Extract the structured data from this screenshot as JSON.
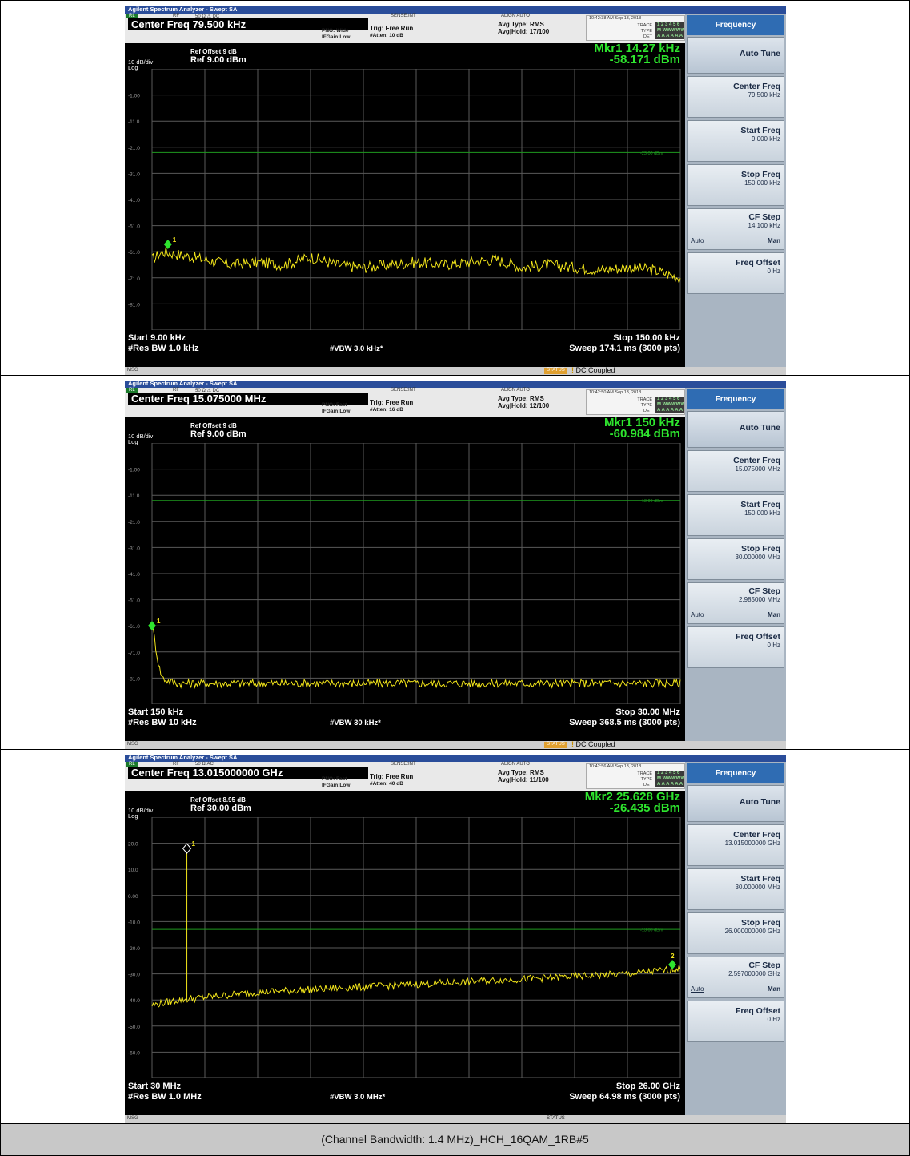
{
  "document": {
    "caption": "(Channel Bandwidth: 1.4 MHz)_HCH_16QAM_1RB#5"
  },
  "common": {
    "window_title": "Agilent Spectrum Analyzer - Swept SA",
    "rl": "RL",
    "rf": "RF",
    "sense": "SENSE:INT",
    "align": "ALIGN AUTO",
    "trig": "Trig: Free Run",
    "avg_type": "Avg Type: RMS",
    "trace_label": "TRACE",
    "type_label": "TYPE",
    "det_label": "DET",
    "trace_val": "1 2 3 4 5 6",
    "type_val": "M WWWWW",
    "det_val": "A A A A A A",
    "div_label": "10 dB/div",
    "log_label": "Log",
    "msg": "MSG",
    "status": "STATUS",
    "dc_coupled": "DC Coupled",
    "softkeys": {
      "header": "Frequency",
      "auto_tune": "Auto Tune",
      "center_freq": "Center Freq",
      "start_freq": "Start Freq",
      "stop_freq": "Stop Freq",
      "cf_step": "CF Step",
      "freq_offset": "Freq Offset",
      "auto": "Auto",
      "man": "Man",
      "offset_val": "0 Hz"
    },
    "colors": {
      "trace": "#f2e51a",
      "marker": "#2ee52e",
      "limit": "#1f9a1f",
      "grid": "#5a5a5a",
      "title_bar": "#2a4d9a",
      "softkey_head": "#2f6cb3"
    }
  },
  "screens": [
    {
      "input_impedance": "50 Ω  ⚠ DC",
      "timestamp": "10:42:38 AM Sep 13, 2018",
      "center_freq": "Center Freq 79.500 kHz",
      "pno": "PNO: Wide",
      "ifgain": "IFGain:Low",
      "atten": "#Atten: 10 dB",
      "avg_hold": "Avg|Hold: 17/100",
      "ref_offset": "Ref Offset 9 dB",
      "ref_level": "Ref 9.00 dBm",
      "marker_label": "Mkr1 14.27 kHz",
      "marker_value": "-58.171 dBm",
      "y_ticks": [
        "-1.00",
        "-11.0",
        "-21.0",
        "-31.0",
        "-41.0",
        "-51.0",
        "-61.0",
        "-71.0",
        "-81.0"
      ],
      "limit_label": "-23.00 dBm",
      "start": "Start 9.00 kHz",
      "res_bw": "#Res BW 1.0 kHz",
      "vbw": "#VBW 3.0 kHz*",
      "stop": "Stop 150.00 kHz",
      "sweep": "Sweep  174.1 ms (3000 pts)",
      "status_hot": true,
      "show_dc": true,
      "center_val": "79.500 kHz",
      "start_val": "9.000 kHz",
      "stop_val": "150.000 kHz",
      "cf_step_val": "14.100 kHz",
      "marker_num": "1",
      "trace": {
        "ref_db": 9,
        "db_per_div": 10,
        "divisions": 10,
        "limit_db": -23,
        "x_points": [
          0,
          0.02,
          0.05,
          0.1,
          0.15,
          0.2,
          0.25,
          0.3,
          0.35,
          0.4,
          0.45,
          0.5,
          0.55,
          0.6,
          0.65,
          0.7,
          0.75,
          0.8,
          0.85,
          0.9,
          0.95,
          1.0
        ],
        "y_db": [
          -64,
          -61,
          -62,
          -64,
          -66,
          -65,
          -66,
          -63,
          -66,
          -67,
          -66,
          -65,
          -66,
          -65,
          -64,
          -67,
          -66,
          -67,
          -68,
          -67,
          -68,
          -71
        ],
        "noise": 2.2,
        "marker": {
          "x": 0.03,
          "y_db": -58.171,
          "hollow": false
        },
        "marker2": null
      }
    },
    {
      "input_impedance": "50 Ω  ⚠ DC",
      "timestamp": "10:42:50 AM Sep 13, 2018",
      "center_freq": "Center Freq 15.075000 MHz",
      "pno": "PNO: Fast",
      "ifgain": "IFGain:Low",
      "atten": "#Atten: 16 dB",
      "avg_hold": "Avg|Hold: 12/100",
      "ref_offset": "Ref Offset 9 dB",
      "ref_level": "Ref 9.00 dBm",
      "marker_label": "Mkr1 150 kHz",
      "marker_value": "-60.984 dBm",
      "y_ticks": [
        "-1.00",
        "-11.0",
        "-21.0",
        "-31.0",
        "-41.0",
        "-51.0",
        "-61.0",
        "-71.0",
        "-81.0"
      ],
      "limit_label": "-13.00 dBm",
      "start": "Start 150 kHz",
      "res_bw": "#Res BW 10 kHz",
      "vbw": "#VBW 30 kHz*",
      "stop": "Stop 30.00 MHz",
      "sweep": "Sweep  368.5 ms (3000 pts)",
      "status_hot": true,
      "show_dc": true,
      "center_val": "15.075000 MHz",
      "start_val": "150.000 kHz",
      "stop_val": "30.000000 MHz",
      "cf_step_val": "2.985000 MHz",
      "marker_num": "1",
      "trace": {
        "ref_db": 9,
        "db_per_div": 10,
        "divisions": 10,
        "limit_db": -13,
        "x_points": [
          0,
          0.005,
          0.01,
          0.015,
          0.02,
          0.03,
          0.05,
          0.1,
          0.2,
          0.3,
          0.4,
          0.5,
          0.6,
          0.7,
          0.8,
          0.9,
          1.0
        ],
        "y_db": [
          -61,
          -66,
          -73,
          -78,
          -81,
          -82,
          -83,
          -83,
          -83,
          -83,
          -83,
          -83,
          -83,
          -83,
          -83,
          -83,
          -83
        ],
        "noise": 1.6,
        "marker": {
          "x": 0.0,
          "y_db": -60.984,
          "hollow": false
        },
        "marker2": null
      }
    },
    {
      "input_impedance": "50 Ω    AC",
      "timestamp": "10:42:56 AM Sep 13, 2018",
      "center_freq": "Center Freq 13.015000000 GHz",
      "pno": "PNO: Fast",
      "ifgain": "IFGain:Low",
      "atten": "#Atten: 40 dB",
      "avg_hold": "Avg|Hold: 11/100",
      "ref_offset": "Ref Offset 8.95 dB",
      "ref_level": "Ref 30.00 dBm",
      "marker_label": "Mkr2 25.628 GHz",
      "marker_value": "-26.435 dBm",
      "y_ticks": [
        "20.0",
        "10.0",
        "0.00",
        "-10.0",
        "-20.0",
        "-30.0",
        "-40.0",
        "-50.0",
        "-60.0"
      ],
      "limit_label": "-13.00 dBm",
      "start": "Start 30 MHz",
      "res_bw": "#Res BW 1.0 MHz",
      "vbw": "#VBW 3.0 MHz*",
      "stop": "Stop 26.00 GHz",
      "sweep": "Sweep  64.98 ms (3000 pts)",
      "status_hot": false,
      "show_dc": false,
      "center_val": "13.015000000 GHz",
      "start_val": "30.000000 MHz",
      "stop_val": "26.000000000 GHz",
      "cf_step_val": "2.597000000 GHz",
      "marker_num": "1",
      "trace": {
        "ref_db": 30,
        "db_per_div": 10,
        "divisions": 10,
        "limit_db": -13,
        "x_points": [
          0,
          0.05,
          0.1,
          0.15,
          0.2,
          0.3,
          0.4,
          0.5,
          0.6,
          0.7,
          0.8,
          0.9,
          0.95,
          1.0
        ],
        "y_db": [
          -42,
          -40,
          -39,
          -38,
          -37,
          -36,
          -35,
          -34,
          -33,
          -32,
          -31,
          -30,
          -29,
          -28
        ],
        "noise": 1.4,
        "marker": {
          "x": 0.066,
          "y_db": 18.0,
          "hollow": true
        },
        "marker2": {
          "x": 0.985,
          "y_db": -26.435,
          "num": "2"
        }
      }
    }
  ]
}
